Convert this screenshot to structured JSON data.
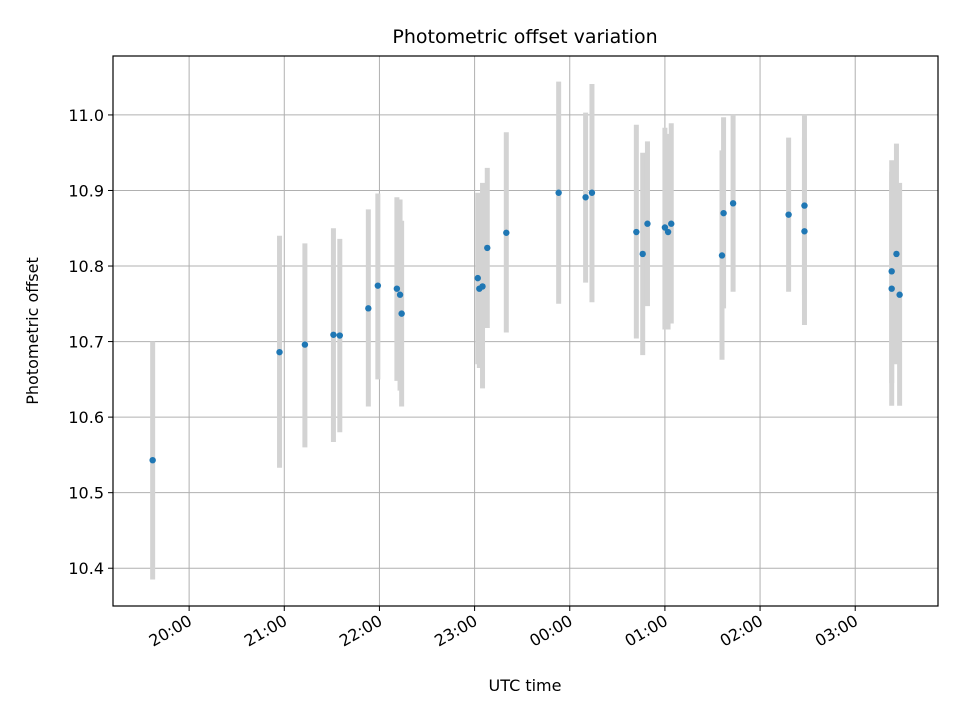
{
  "chart_data": {
    "type": "scatter",
    "title": "Photometric offset variation",
    "xlabel": "UTC time",
    "ylabel": "Photometric offset",
    "x_unit": "hours",
    "x_ticks": [
      {
        "value": 20,
        "label": "20:00"
      },
      {
        "value": 21,
        "label": "21:00"
      },
      {
        "value": 22,
        "label": "22:00"
      },
      {
        "value": 23,
        "label": "23:00"
      },
      {
        "value": 24,
        "label": "00:00"
      },
      {
        "value": 25,
        "label": "01:00"
      },
      {
        "value": 26,
        "label": "02:00"
      },
      {
        "value": 27,
        "label": "03:00"
      }
    ],
    "y_ticks": [
      10.4,
      10.5,
      10.6,
      10.7,
      10.8,
      10.9,
      11.0
    ],
    "xlim": [
      19.2,
      27.87
    ],
    "ylim": [
      10.35,
      11.078
    ],
    "grid": true,
    "point_color": "#1f77b4",
    "errorbar_color": "#d3d3d3",
    "points": [
      {
        "x": "19:37",
        "y": 10.543,
        "lo": 10.385,
        "hi": 10.7
      },
      {
        "x": "20:57",
        "y": 10.686,
        "lo": 10.533,
        "hi": 10.84
      },
      {
        "x": "21:13",
        "y": 10.696,
        "lo": 10.56,
        "hi": 10.83
      },
      {
        "x": "21:31",
        "y": 10.709,
        "lo": 10.567,
        "hi": 10.85
      },
      {
        "x": "21:35",
        "y": 10.708,
        "lo": 10.58,
        "hi": 10.836
      },
      {
        "x": "21:53",
        "y": 10.744,
        "lo": 10.614,
        "hi": 10.875
      },
      {
        "x": "21:59",
        "y": 10.774,
        "lo": 10.65,
        "hi": 10.896
      },
      {
        "x": "22:11",
        "y": 10.77,
        "lo": 10.648,
        "hi": 10.891
      },
      {
        "x": "22:13",
        "y": 10.762,
        "lo": 10.635,
        "hi": 10.888
      },
      {
        "x": "22:14",
        "y": 10.737,
        "lo": 10.614,
        "hi": 10.86
      },
      {
        "x": "23:02",
        "y": 10.784,
        "lo": 10.67,
        "hi": 10.897
      },
      {
        "x": "23:03",
        "y": 10.77,
        "lo": 10.665,
        "hi": 10.875
      },
      {
        "x": "23:05",
        "y": 10.773,
        "lo": 10.638,
        "hi": 10.91
      },
      {
        "x": "23:08",
        "y": 10.824,
        "lo": 10.718,
        "hi": 10.93
      },
      {
        "x": "23:20",
        "y": 10.844,
        "lo": 10.712,
        "hi": 10.977
      },
      {
        "x": "23:53",
        "y": 10.897,
        "lo": 10.75,
        "hi": 11.044
      },
      {
        "x": "00:10",
        "y": 10.891,
        "lo": 10.778,
        "hi": 11.003
      },
      {
        "x": "00:14",
        "y": 10.897,
        "lo": 10.752,
        "hi": 11.041
      },
      {
        "x": "00:42",
        "y": 10.845,
        "lo": 10.704,
        "hi": 10.987
      },
      {
        "x": "00:46",
        "y": 10.816,
        "lo": 10.682,
        "hi": 10.95
      },
      {
        "x": "00:49",
        "y": 10.856,
        "lo": 10.747,
        "hi": 10.965
      },
      {
        "x": "01:00",
        "y": 10.851,
        "lo": 10.716,
        "hi": 10.983
      },
      {
        "x": "01:02",
        "y": 10.845,
        "lo": 10.716,
        "hi": 10.975
      },
      {
        "x": "01:04",
        "y": 10.856,
        "lo": 10.724,
        "hi": 10.989
      },
      {
        "x": "01:36",
        "y": 10.814,
        "lo": 10.676,
        "hi": 10.953
      },
      {
        "x": "01:37",
        "y": 10.87,
        "lo": 10.744,
        "hi": 10.997
      },
      {
        "x": "01:43",
        "y": 10.883,
        "lo": 10.766,
        "hi": 11.0
      },
      {
        "x": "02:18",
        "y": 10.868,
        "lo": 10.766,
        "hi": 10.97
      },
      {
        "x": "02:28",
        "y": 10.88,
        "lo": 10.762,
        "hi": 11.0
      },
      {
        "x": "02:28",
        "y": 10.846,
        "lo": 10.722,
        "hi": 10.97
      },
      {
        "x": "03:23",
        "y": 10.793,
        "lo": 10.645,
        "hi": 10.94
      },
      {
        "x": "03:23",
        "y": 10.77,
        "lo": 10.615,
        "hi": 10.925
      },
      {
        "x": "03:26",
        "y": 10.816,
        "lo": 10.67,
        "hi": 10.962
      },
      {
        "x": "03:28",
        "y": 10.762,
        "lo": 10.615,
        "hi": 10.91
      }
    ]
  }
}
